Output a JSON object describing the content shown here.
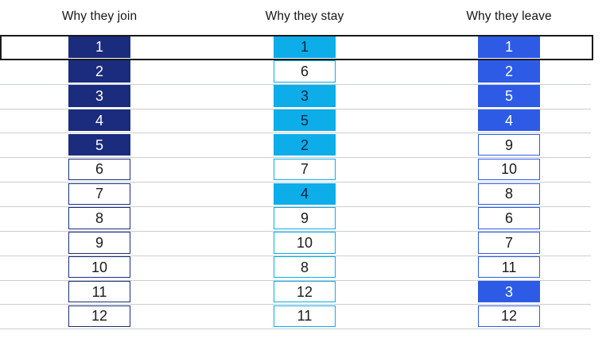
{
  "exhibit": {
    "background_color": "#ffffff",
    "grid_line_color": "#c9cdd2",
    "first_row_outline_color": "#1a1a1a",
    "note": "Ranked-list exhibit comparing reasons employees join, stay, and leave; top-5 ranked reasons are color-filled in each column; the rank-1 row is outlined in black across the full width."
  },
  "chart_data": {
    "type": "table",
    "title": "",
    "legend_position": "none",
    "grid": true,
    "columns": [
      {
        "title": "Why they join",
        "accent_color": "#1b2c7e",
        "filled_text_color": "#ffffff",
        "unfilled_text_color": "#1b1b1b",
        "ranks": [
          {
            "value": "1",
            "filled": true
          },
          {
            "value": "2",
            "filled": true
          },
          {
            "value": "3",
            "filled": true
          },
          {
            "value": "4",
            "filled": true
          },
          {
            "value": "5",
            "filled": true
          },
          {
            "value": "6",
            "filled": false
          },
          {
            "value": "7",
            "filled": false
          },
          {
            "value": "8",
            "filled": false
          },
          {
            "value": "9",
            "filled": false
          },
          {
            "value": "10",
            "filled": false
          },
          {
            "value": "11",
            "filled": false
          },
          {
            "value": "12",
            "filled": false
          }
        ]
      },
      {
        "title": "Why they stay",
        "accent_color": "#0cade9",
        "filled_text_color": "#0a2540",
        "unfilled_text_color": "#1b1b1b",
        "ranks": [
          {
            "value": "1",
            "filled": true
          },
          {
            "value": "6",
            "filled": false
          },
          {
            "value": "3",
            "filled": true
          },
          {
            "value": "5",
            "filled": true
          },
          {
            "value": "2",
            "filled": true
          },
          {
            "value": "7",
            "filled": false
          },
          {
            "value": "4",
            "filled": true
          },
          {
            "value": "9",
            "filled": false
          },
          {
            "value": "10",
            "filled": false
          },
          {
            "value": "8",
            "filled": false
          },
          {
            "value": "12",
            "filled": false
          },
          {
            "value": "11",
            "filled": false
          }
        ]
      },
      {
        "title": "Why they leave",
        "accent_color": "#2e5be6",
        "filled_text_color": "#ffffff",
        "unfilled_text_color": "#1b1b1b",
        "ranks": [
          {
            "value": "1",
            "filled": true
          },
          {
            "value": "2",
            "filled": true
          },
          {
            "value": "5",
            "filled": true
          },
          {
            "value": "4",
            "filled": true
          },
          {
            "value": "9",
            "filled": false
          },
          {
            "value": "10",
            "filled": false
          },
          {
            "value": "8",
            "filled": false
          },
          {
            "value": "6",
            "filled": false
          },
          {
            "value": "7",
            "filled": false
          },
          {
            "value": "11",
            "filled": false
          },
          {
            "value": "3",
            "filled": true
          },
          {
            "value": "12",
            "filled": false
          }
        ]
      }
    ]
  }
}
